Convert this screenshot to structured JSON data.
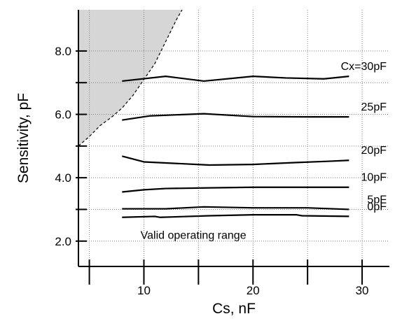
{
  "chart_data": {
    "type": "line",
    "xlabel": "Cs, nF",
    "ylabel": "Sensitivity, pF",
    "xlim": [
      4,
      32.5
    ],
    "ylim": [
      1.2,
      9.3
    ],
    "x_ticks": [
      10,
      20,
      30
    ],
    "x_tick_labels": [
      "10",
      "20",
      "30"
    ],
    "x_minor_ticks": [
      5,
      15,
      25
    ],
    "y_ticks": [
      2,
      4,
      6,
      8
    ],
    "y_tick_labels": [
      "2.0",
      "4.0",
      "6.0",
      "8.0"
    ],
    "y_minor_ticks": [
      3,
      5,
      7
    ],
    "grid": true,
    "series": [
      {
        "name": "Cx=30pF",
        "x": [
          8,
          12,
          15.5,
          20,
          23,
          26.5,
          28.8
        ],
        "y": [
          7.05,
          7.2,
          7.05,
          7.2,
          7.15,
          7.12,
          7.2
        ]
      },
      {
        "name": "25pF",
        "x": [
          8,
          10.5,
          15.5,
          20,
          25,
          28.8
        ],
        "y": [
          5.82,
          5.95,
          6.02,
          5.93,
          5.92,
          5.92
        ]
      },
      {
        "name": "20pF",
        "x": [
          8,
          10,
          13,
          16,
          20,
          24,
          27,
          28.8
        ],
        "y": [
          4.68,
          4.5,
          4.45,
          4.4,
          4.42,
          4.48,
          4.52,
          4.55
        ]
      },
      {
        "name": "10pF",
        "x": [
          8,
          10,
          12,
          16,
          20,
          25,
          28.8
        ],
        "y": [
          3.55,
          3.62,
          3.66,
          3.68,
          3.7,
          3.7,
          3.7
        ]
      },
      {
        "name": "5pF",
        "x": [
          8,
          12,
          15.5,
          20,
          25,
          28.8
        ],
        "y": [
          3.02,
          3.02,
          3.08,
          3.05,
          3.05,
          3.0
        ]
      },
      {
        "name": "0pF",
        "x": [
          8,
          11,
          11.5,
          16,
          20,
          24,
          24.5,
          28.8
        ],
        "y": [
          2.75,
          2.78,
          2.75,
          2.8,
          2.83,
          2.83,
          2.8,
          2.78
        ]
      }
    ],
    "boundary": {
      "x": [
        4,
        5,
        6,
        7,
        8,
        9,
        10,
        11,
        12,
        13,
        13.5
      ],
      "y": [
        5.0,
        5.3,
        5.65,
        5.9,
        6.2,
        6.6,
        7.1,
        7.6,
        8.3,
        9.0,
        9.3
      ]
    },
    "annotations": [
      {
        "text": "Valid operating range",
        "x": 9.5,
        "y": 2.2
      }
    ]
  },
  "colors": {
    "line": "#000000",
    "grid": "#7f7f7f",
    "shaded_region": "#d6d6d6",
    "background": "#ffffff"
  }
}
